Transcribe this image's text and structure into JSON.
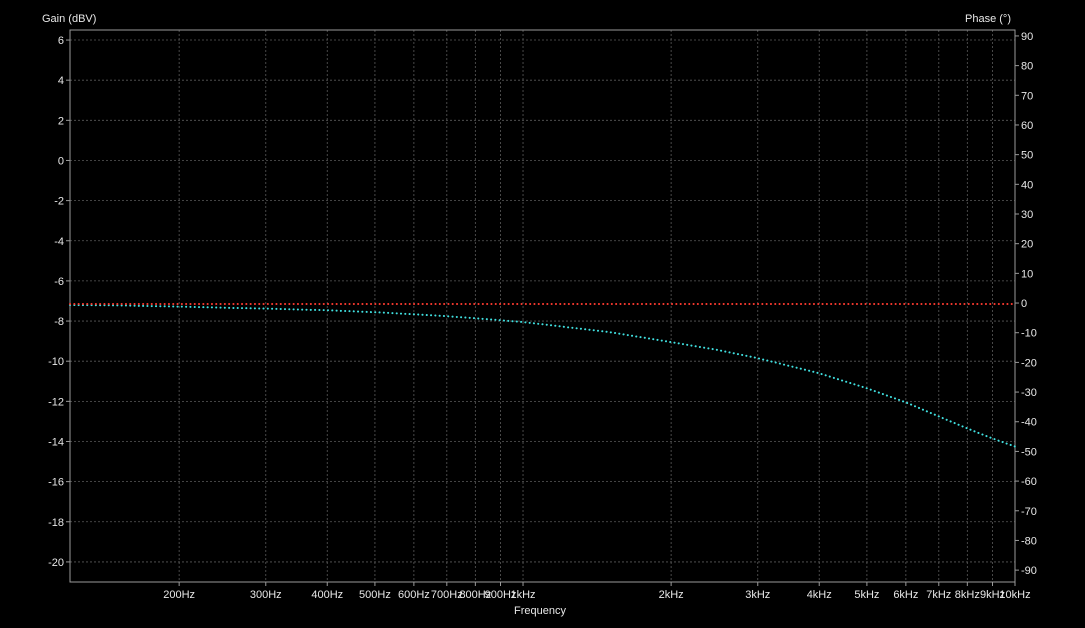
{
  "chart_data": {
    "type": "line",
    "title": "",
    "xlabel": "Frequency",
    "ylabel_left": "Gain (dBV)",
    "ylabel_right": "Phase (°)",
    "x_scale": "log",
    "xlim": [
      120,
      10000
    ],
    "ylim_left": [
      -21,
      6.5
    ],
    "ylim_right": [
      -94,
      92
    ],
    "grid": true,
    "x_ticks": [
      {
        "value": 200,
        "label": "200Hz"
      },
      {
        "value": 300,
        "label": "300Hz"
      },
      {
        "value": 400,
        "label": "400Hz"
      },
      {
        "value": 500,
        "label": "500Hz"
      },
      {
        "value": 600,
        "label": "600Hz"
      },
      {
        "value": 700,
        "label": "700Hz"
      },
      {
        "value": 800,
        "label": "800Hz"
      },
      {
        "value": 900,
        "label": "900Hz"
      },
      {
        "value": 1000,
        "label": "1kHz"
      },
      {
        "value": 2000,
        "label": "2kHz"
      },
      {
        "value": 3000,
        "label": "3kHz"
      },
      {
        "value": 4000,
        "label": "4kHz"
      },
      {
        "value": 5000,
        "label": "5kHz"
      },
      {
        "value": 6000,
        "label": "6kHz"
      },
      {
        "value": 7000,
        "label": "7kHz"
      },
      {
        "value": 8000,
        "label": "8kHz"
      },
      {
        "value": 9000,
        "label": "9kHz"
      },
      {
        "value": 10000,
        "label": "10kHz"
      }
    ],
    "y_left_ticks": [
      6,
      4,
      2,
      0,
      -2,
      -4,
      -6,
      -8,
      -10,
      -12,
      -14,
      -16,
      -18,
      -20
    ],
    "y_left_tick_labels": [
      "6",
      "4",
      "2",
      "0",
      "-2",
      "-4",
      "-6",
      "-8",
      "-10",
      "-12",
      "-14",
      "-16",
      "-18",
      "-20"
    ],
    "y_right_ticks": [
      90,
      80,
      70,
      60,
      50,
      40,
      30,
      20,
      10,
      0,
      -10,
      -20,
      -30,
      -40,
      -50,
      -60,
      -70,
      -80,
      -90
    ],
    "y_right_tick_labels": [
      "90",
      "80",
      "70",
      "60",
      "50",
      "40",
      "30",
      "20",
      "10",
      "0",
      "-10",
      "-20",
      "-30",
      "-40",
      "-50",
      "-60",
      "-70",
      "-80",
      "-90"
    ],
    "series": [
      {
        "axis": "left",
        "color": "#40e0e0",
        "style": "dotted",
        "x": [
          120,
          150,
          200,
          250,
          300,
          400,
          500,
          600,
          700,
          800,
          900,
          1000,
          1500,
          2000,
          2500,
          3000,
          4000,
          5000,
          6000,
          7000,
          8000,
          9000,
          10000
        ],
        "y": [
          -7.2,
          -7.22,
          -7.28,
          -7.34,
          -7.38,
          -7.46,
          -7.56,
          -7.66,
          -7.76,
          -7.86,
          -7.96,
          -8.05,
          -8.55,
          -9.05,
          -9.45,
          -9.85,
          -10.6,
          -11.35,
          -12.05,
          -12.75,
          -13.35,
          -13.85,
          -14.25
        ]
      },
      {
        "axis": "left",
        "color": "#ff3b30",
        "style": "dotted",
        "x": [
          120,
          10000
        ],
        "y": [
          -7.15,
          -7.15
        ]
      }
    ]
  },
  "colors": {
    "background": "#000000",
    "grid": "#5a5a5a",
    "axis": "#9a9a9a",
    "text": "#e8e8e8"
  }
}
